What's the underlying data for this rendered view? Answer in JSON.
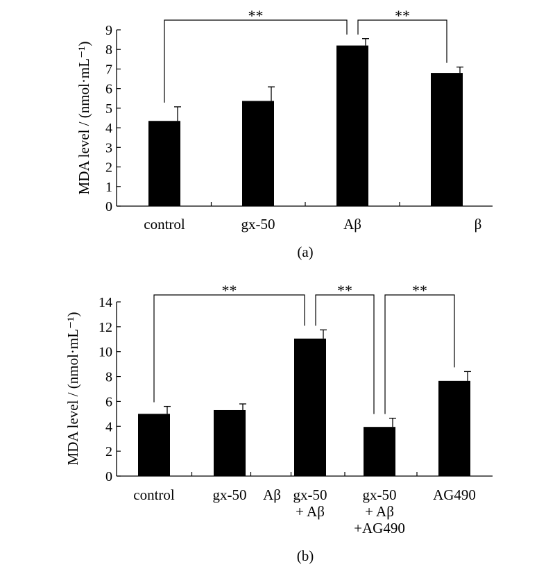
{
  "chart_data": [
    {
      "type": "bar",
      "panel_label": "(a)",
      "ylabel": "MDA level / (nmol·mL⁻¹)",
      "ylim": [
        0,
        9
      ],
      "ytick_step": 1,
      "yticks": [
        "0",
        "1",
        "2",
        "3",
        "4",
        "5",
        "6",
        "7",
        "8",
        "9"
      ],
      "categories": [
        "control",
        "gx-50",
        "Aβ",
        "β"
      ],
      "values": [
        4.35,
        5.37,
        8.2,
        6.8
      ],
      "errors": [
        0.72,
        0.72,
        0.35,
        0.3
      ],
      "bar_color": "#000000",
      "grid": false,
      "significance": [
        {
          "from": 0,
          "to": 2,
          "label": "**"
        },
        {
          "from": 2,
          "to": 3,
          "label": "**"
        }
      ]
    },
    {
      "type": "bar",
      "panel_label": "(b)",
      "ylabel": "MDA level / (nmol·mL⁻¹)",
      "ylim": [
        0,
        14
      ],
      "ytick_step": 2,
      "yticks": [
        "0",
        "2",
        "4",
        "6",
        "8",
        "10",
        "12",
        "14"
      ],
      "categories": [
        "control",
        "gx-50",
        "Aβ",
        "gx-50\n+ Aβ",
        "gx-50\n+ Aβ\n+AG490",
        "AG490"
      ],
      "values": [
        5.0,
        5.3,
        null,
        11.05,
        3.95,
        7.65
      ],
      "errors": [
        0.6,
        0.5,
        null,
        0.7,
        0.7,
        0.75
      ],
      "bar_color": "#000000",
      "grid": false,
      "significance": [
        {
          "from": 0,
          "to": 3,
          "label": "**"
        },
        {
          "from": 3,
          "to": 4,
          "label": "**"
        },
        {
          "from": 4,
          "to": 5,
          "label": "**"
        }
      ]
    }
  ]
}
